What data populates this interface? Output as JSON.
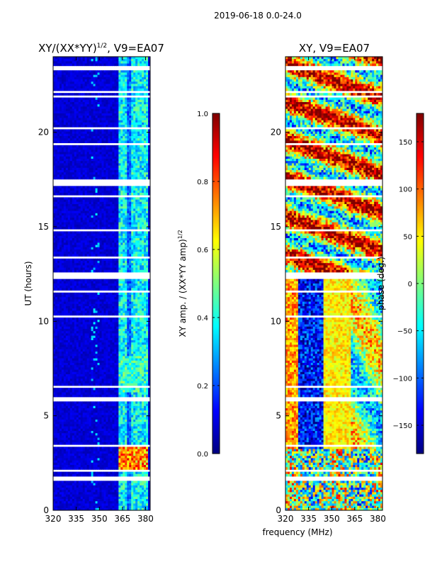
{
  "suptitle": "2019-06-18 0.0-24.0",
  "xlabel": "frequency (MHz)",
  "colormap": [
    "#00007f",
    "#0000ff",
    "#007fff",
    "#00ffff",
    "#7fff7f",
    "#ffff00",
    "#ff7f00",
    "#ff0000",
    "#7f0000"
  ],
  "chart_data": [
    {
      "type": "heatmap",
      "title": "XY/(XX*YY)^{1/2}, V9=EA07",
      "title_main": "XY/(XX*YY)",
      "title_sup": "1/2",
      "title_rest": ", V9=EA07",
      "xlabel": "",
      "ylabel": "UT (hours)",
      "xlim": [
        320,
        383
      ],
      "ylim": [
        0,
        24
      ],
      "x_ticks": [
        "320",
        "335",
        "350",
        "365",
        "380"
      ],
      "x_tick_values": [
        320,
        335,
        350,
        365,
        380
      ],
      "y_ticks": [
        "0",
        "5",
        "10",
        "15",
        "20"
      ],
      "y_tick_values": [
        0,
        5,
        10,
        15,
        20
      ],
      "colorbar": {
        "label": "XY amp. / (XX*YY amp)^{1/2}",
        "label_main": "XY amp. / (XX*YY amp)",
        "label_sup": "1/2",
        "range": [
          0.0,
          1.0
        ],
        "ticks": [
          "0.0",
          "0.2",
          "0.4",
          "0.6",
          "0.8",
          "1.0"
        ],
        "tick_values": [
          0.0,
          0.2,
          0.4,
          0.6,
          0.8,
          1.0
        ]
      },
      "description": "Mostly low amplitude (~0.05-0.1) across band; elevated (~0.3-0.5) in 362-382 MHz channels; peak (~0.7-0.9) near 362-380 MHz at 2-3 UT; blank rows at flagged times"
    },
    {
      "type": "heatmap",
      "title": "XY, V9=EA07",
      "xlabel": "frequency (MHz)",
      "ylabel": "",
      "xlim": [
        320,
        383
      ],
      "ylim": [
        0,
        24
      ],
      "x_ticks": [
        "320",
        "335",
        "350",
        "365",
        "380"
      ],
      "x_tick_values": [
        320,
        335,
        350,
        365,
        380
      ],
      "y_ticks": [
        "0",
        "5",
        "10",
        "15",
        "20"
      ],
      "y_tick_values": [
        0,
        5,
        10,
        15,
        20
      ],
      "colorbar": {
        "label": "phase (deg.)",
        "range": [
          -180,
          180
        ],
        "ticks": [
          "−150",
          "−100",
          "−50",
          "0",
          "50",
          "100",
          "150"
        ],
        "tick_values": [
          -150,
          -100,
          -50,
          0,
          50,
          100,
          150
        ]
      },
      "description": "Phase varies strongly with time and frequency; blue/red banding 325-345 MHz during 3-12 UT; yellow/orange at 345-360 MHz; mixed red/yellow after 12.5 UT"
    }
  ]
}
